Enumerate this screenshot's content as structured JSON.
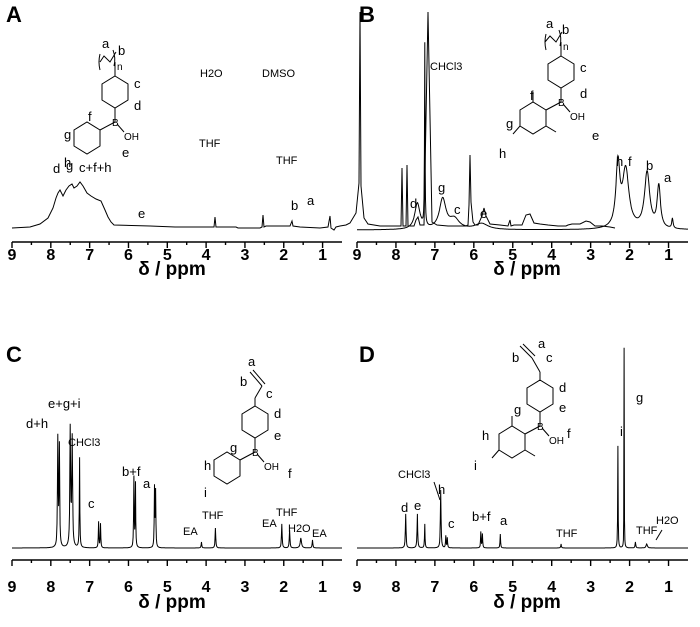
{
  "chart_data": [
    {
      "type": "line",
      "panel": "A",
      "xlabel": "δ / ppm",
      "xlim": [
        9,
        0.5
      ],
      "xticks": [
        "9",
        "8",
        "7",
        "6",
        "5",
        "4",
        "3",
        "2",
        "1"
      ],
      "peak_labels": [
        {
          "text": "d",
          "ppm": 7.6
        },
        {
          "text": "g",
          "ppm": 7.35
        },
        {
          "text": "c+f+h",
          "ppm": 6.95
        },
        {
          "text": "e",
          "ppm": 5.6
        },
        {
          "text": "THF",
          "ppm": 3.62
        },
        {
          "text": "H2O",
          "ppm": 3.33
        },
        {
          "text": "DMSO",
          "ppm": 2.5
        },
        {
          "text": "THF",
          "ppm": 1.76
        },
        {
          "text": "b",
          "ppm": 1.62
        },
        {
          "text": "a",
          "ppm": 1.2
        }
      ],
      "structure_labels": [
        "a",
        "b",
        "n",
        "c",
        "d",
        "f",
        "g",
        "h",
        "B",
        "OH",
        "e"
      ]
    },
    {
      "type": "line",
      "panel": "B",
      "xlabel": "δ / ppm",
      "xlim": [
        9,
        0.5
      ],
      "xticks": [
        "9",
        "8",
        "7",
        "6",
        "5",
        "4",
        "3",
        "2",
        "1"
      ],
      "peak_labels": [
        {
          "text": "CHCl3",
          "ppm": 7.26
        },
        {
          "text": "d",
          "ppm": 7.4
        },
        {
          "text": "g",
          "ppm": 6.8
        },
        {
          "text": "c",
          "ppm": 6.5
        },
        {
          "text": "e",
          "ppm": 5.8
        },
        {
          "text": "h",
          "ppm": 2.3
        },
        {
          "text": "f",
          "ppm": 2.1
        },
        {
          "text": "b",
          "ppm": 1.55
        },
        {
          "text": "a",
          "ppm": 1.25
        }
      ],
      "structure_labels": [
        "a",
        "b",
        "n",
        "c",
        "d",
        "f",
        "g",
        "h",
        "B",
        "OH",
        "e"
      ]
    },
    {
      "type": "line",
      "panel": "C",
      "xlabel": "δ / ppm",
      "xlim": [
        9,
        0.5
      ],
      "xticks": [
        "9",
        "8",
        "7",
        "6",
        "5",
        "4",
        "3",
        "2",
        "1"
      ],
      "peak_labels": [
        {
          "text": "d+h",
          "ppm": 7.8
        },
        {
          "text": "e+g+i",
          "ppm": 7.48
        },
        {
          "text": "CHCl3",
          "ppm": 7.26
        },
        {
          "text": "c",
          "ppm": 6.75
        },
        {
          "text": "b+f",
          "ppm": 5.85
        },
        {
          "text": "a",
          "ppm": 5.32
        },
        {
          "text": "EA",
          "ppm": 4.12
        },
        {
          "text": "THF",
          "ppm": 3.76
        },
        {
          "text": "EA",
          "ppm": 2.05
        },
        {
          "text": "THF",
          "ppm": 1.85
        },
        {
          "text": "H2O",
          "ppm": 1.56
        },
        {
          "text": "EA",
          "ppm": 1.26
        }
      ],
      "structure_labels": [
        "a",
        "b",
        "c",
        "d",
        "e",
        "g",
        "h",
        "i",
        "B",
        "OH",
        "f"
      ]
    },
    {
      "type": "line",
      "panel": "D",
      "xlabel": "δ / ppm",
      "xlim": [
        9,
        0.5
      ],
      "xticks": [
        "9",
        "8",
        "7",
        "6",
        "5",
        "4",
        "3",
        "2",
        "1"
      ],
      "peak_labels": [
        {
          "text": "CHCl3",
          "ppm": 7.26
        },
        {
          "text": "d",
          "ppm": 7.75
        },
        {
          "text": "e",
          "ppm": 7.45
        },
        {
          "text": "h",
          "ppm": 6.85
        },
        {
          "text": "c",
          "ppm": 6.7
        },
        {
          "text": "b+f",
          "ppm": 5.8
        },
        {
          "text": "a",
          "ppm": 5.3
        },
        {
          "text": "THF",
          "ppm": 3.76
        },
        {
          "text": "i",
          "ppm": 2.3
        },
        {
          "text": "g",
          "ppm": 2.14
        },
        {
          "text": "THF",
          "ppm": 1.85
        },
        {
          "text": "H2O",
          "ppm": 1.56
        }
      ],
      "structure_labels": [
        "a",
        "b",
        "c",
        "d",
        "e",
        "g",
        "h",
        "i",
        "B",
        "OH",
        "f"
      ]
    }
  ]
}
